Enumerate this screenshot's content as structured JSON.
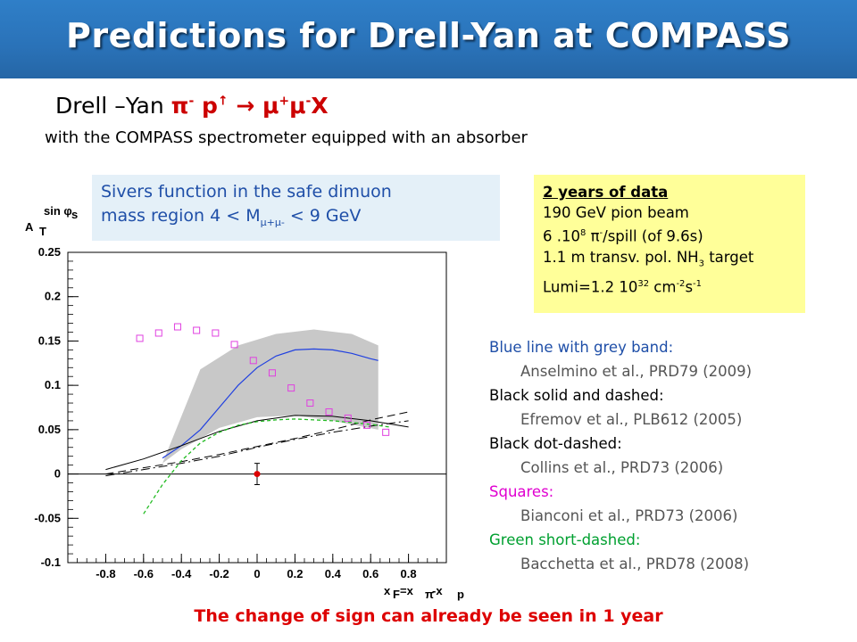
{
  "title": "Predictions for Drell-Yan at COMPASS",
  "process": {
    "prefix": "Drell –Yan",
    "pi": "π",
    "pi_sup": "-",
    "p": "p",
    "p_sup": "↑",
    "arrow": "→",
    "mu1": "μ",
    "mu1_sup": "+",
    "mu2": "μ",
    "mu2_sup": "-",
    "x": "X"
  },
  "subtitle": "with the COMPASS spectrometer equipped with an absorber",
  "sivers_box": {
    "line1": "Sivers function in the safe dimuon",
    "line2_prefix": "mass region   4 < M",
    "line2_sub": "μ+μ-",
    "line2_suffix": " < 9 GeV"
  },
  "data_box": {
    "heading": "2 years of data",
    "line1": "190 GeV pion beam",
    "line2_a": "6 .10",
    "line2_sup1": "8",
    "line2_b": " π",
    "line2_sup2": "-",
    "line2_c": "/spill (of 9.6s)",
    "line3_a": "1.1 m transv. pol. NH",
    "line3_sub": "3",
    "line3_b": "  target",
    "line4_a": "Lumi=1.2 10",
    "line4_sup1": "32",
    "line4_b": " cm",
    "line4_sup2": "-2",
    "line4_c": "s",
    "line4_sup3": "-1"
  },
  "legend": [
    {
      "label": "Blue line with grey band:",
      "ref": "Anselmino et al.,  PRD79 (2009)",
      "color": "#1f4fa8"
    },
    {
      "label": "Black solid and dashed:",
      "ref": "Efremov et al., PLB612 (2005)",
      "color": "#000000"
    },
    {
      "label": "Black dot-dashed:",
      "ref": "Collins et al., PRD73 (2006)",
      "color": "#000000"
    },
    {
      "label": "Squares:",
      "ref": "Bianconi et al., PRD73 (2006)",
      "color": "#e000d0"
    },
    {
      "label": "Green short-dashed:",
      "ref": "Bacchetta et al., PRD78 (2008)",
      "color": "#00a030"
    }
  ],
  "footer": "The change of sign can already be seen in 1 year",
  "chart_data": {
    "type": "line",
    "ylabel_main": "A",
    "ylabel_sub": "T",
    "ylabel_sup": "sin φ",
    "ylabel_sup_sub": "s",
    "xlabel_main": "x",
    "xlabel_sub": "F",
    "xlabel_eq": "=x",
    "xlabel_sub2": "π",
    "xlabel_mid": "-x",
    "xlabel_sub3": "p",
    "xlim": [
      -1.0,
      1.0
    ],
    "ylim": [
      -0.1,
      0.25
    ],
    "x_ticks": [
      "-0.8",
      "-0.6",
      "-0.4",
      "-0.2",
      "0",
      "0.2",
      "0.4",
      "0.6",
      "0.8"
    ],
    "x_tick_values": [
      -0.8,
      -0.6,
      -0.4,
      -0.2,
      0,
      0.2,
      0.4,
      0.6,
      0.8
    ],
    "y_ticks": [
      "-0.1",
      "-0.05",
      "0",
      "0.05",
      "0.1",
      "0.15",
      "0.2",
      "0.25"
    ],
    "y_tick_values": [
      -0.1,
      -0.05,
      0,
      0.05,
      0.1,
      0.15,
      0.2,
      0.25
    ],
    "colors": {
      "blue": "#2040e0",
      "band": "#c8c8c8",
      "squares": "#e040e0",
      "green": "#22bb22",
      "point": "#dd0000",
      "black": "#000000"
    },
    "band": {
      "upper": [
        [
          -0.3,
          0.118
        ],
        [
          -0.1,
          0.145
        ],
        [
          0.1,
          0.158
        ],
        [
          0.3,
          0.163
        ],
        [
          0.5,
          0.158
        ],
        [
          0.64,
          0.145
        ]
      ],
      "lower": [
        [
          -0.5,
          0.012
        ],
        [
          -0.4,
          0.028
        ],
        [
          -0.2,
          0.052
        ],
        [
          0.0,
          0.064
        ],
        [
          0.2,
          0.066
        ],
        [
          0.4,
          0.06
        ],
        [
          0.64,
          0.05
        ]
      ]
    },
    "series": [
      {
        "name": "Anselmino et al.",
        "style": "blue-solid",
        "x": [
          -0.5,
          -0.4,
          -0.3,
          -0.2,
          -0.1,
          0.0,
          0.1,
          0.2,
          0.3,
          0.4,
          0.5,
          0.6,
          0.64
        ],
        "y": [
          0.018,
          0.032,
          0.05,
          0.075,
          0.1,
          0.12,
          0.133,
          0.14,
          0.141,
          0.14,
          0.136,
          0.13,
          0.128
        ]
      },
      {
        "name": "Efremov et al. solid",
        "style": "black-solid",
        "x": [
          -0.8,
          -0.6,
          -0.4,
          -0.2,
          0.0,
          0.2,
          0.4,
          0.6,
          0.8
        ],
        "y": [
          0.005,
          0.017,
          0.032,
          0.048,
          0.06,
          0.066,
          0.065,
          0.06,
          0.053
        ]
      },
      {
        "name": "Efremov et al. dashed",
        "style": "black-dashed",
        "x": [
          -0.8,
          -0.6,
          -0.4,
          -0.2,
          0.0,
          0.2,
          0.4,
          0.6,
          0.8
        ],
        "y": [
          0.0,
          0.007,
          0.014,
          0.022,
          0.031,
          0.04,
          0.05,
          0.061,
          0.07
        ]
      },
      {
        "name": "Collins et al.",
        "style": "black-dotdash",
        "x": [
          -0.8,
          -0.6,
          -0.4,
          -0.2,
          0.0,
          0.2,
          0.4,
          0.6,
          0.8
        ],
        "y": [
          -0.002,
          0.005,
          0.012,
          0.02,
          0.03,
          0.039,
          0.047,
          0.054,
          0.06
        ]
      },
      {
        "name": "Bacchetta et al.",
        "style": "green-dashed",
        "x": [
          -0.6,
          -0.5,
          -0.4,
          -0.3,
          -0.2,
          -0.1,
          0.0,
          0.1,
          0.2,
          0.3,
          0.4,
          0.5,
          0.6,
          0.7
        ],
        "y": [
          -0.045,
          -0.012,
          0.015,
          0.035,
          0.047,
          0.055,
          0.059,
          0.061,
          0.062,
          0.061,
          0.06,
          0.058,
          0.056,
          0.053
        ]
      },
      {
        "name": "Bianconi et al.",
        "style": "magenta-squares",
        "x": [
          -0.62,
          -0.52,
          -0.42,
          -0.32,
          -0.22,
          -0.12,
          -0.02,
          0.08,
          0.18,
          0.28,
          0.38,
          0.48,
          0.58,
          0.68
        ],
        "y": [
          0.153,
          0.159,
          0.166,
          0.162,
          0.159,
          0.146,
          0.128,
          0.114,
          0.097,
          0.08,
          0.07,
          0.063,
          0.055,
          0.047
        ]
      }
    ],
    "data_point": {
      "x": 0.0,
      "y": 0.0,
      "yerr": 0.012,
      "xerr": 0.015
    }
  }
}
